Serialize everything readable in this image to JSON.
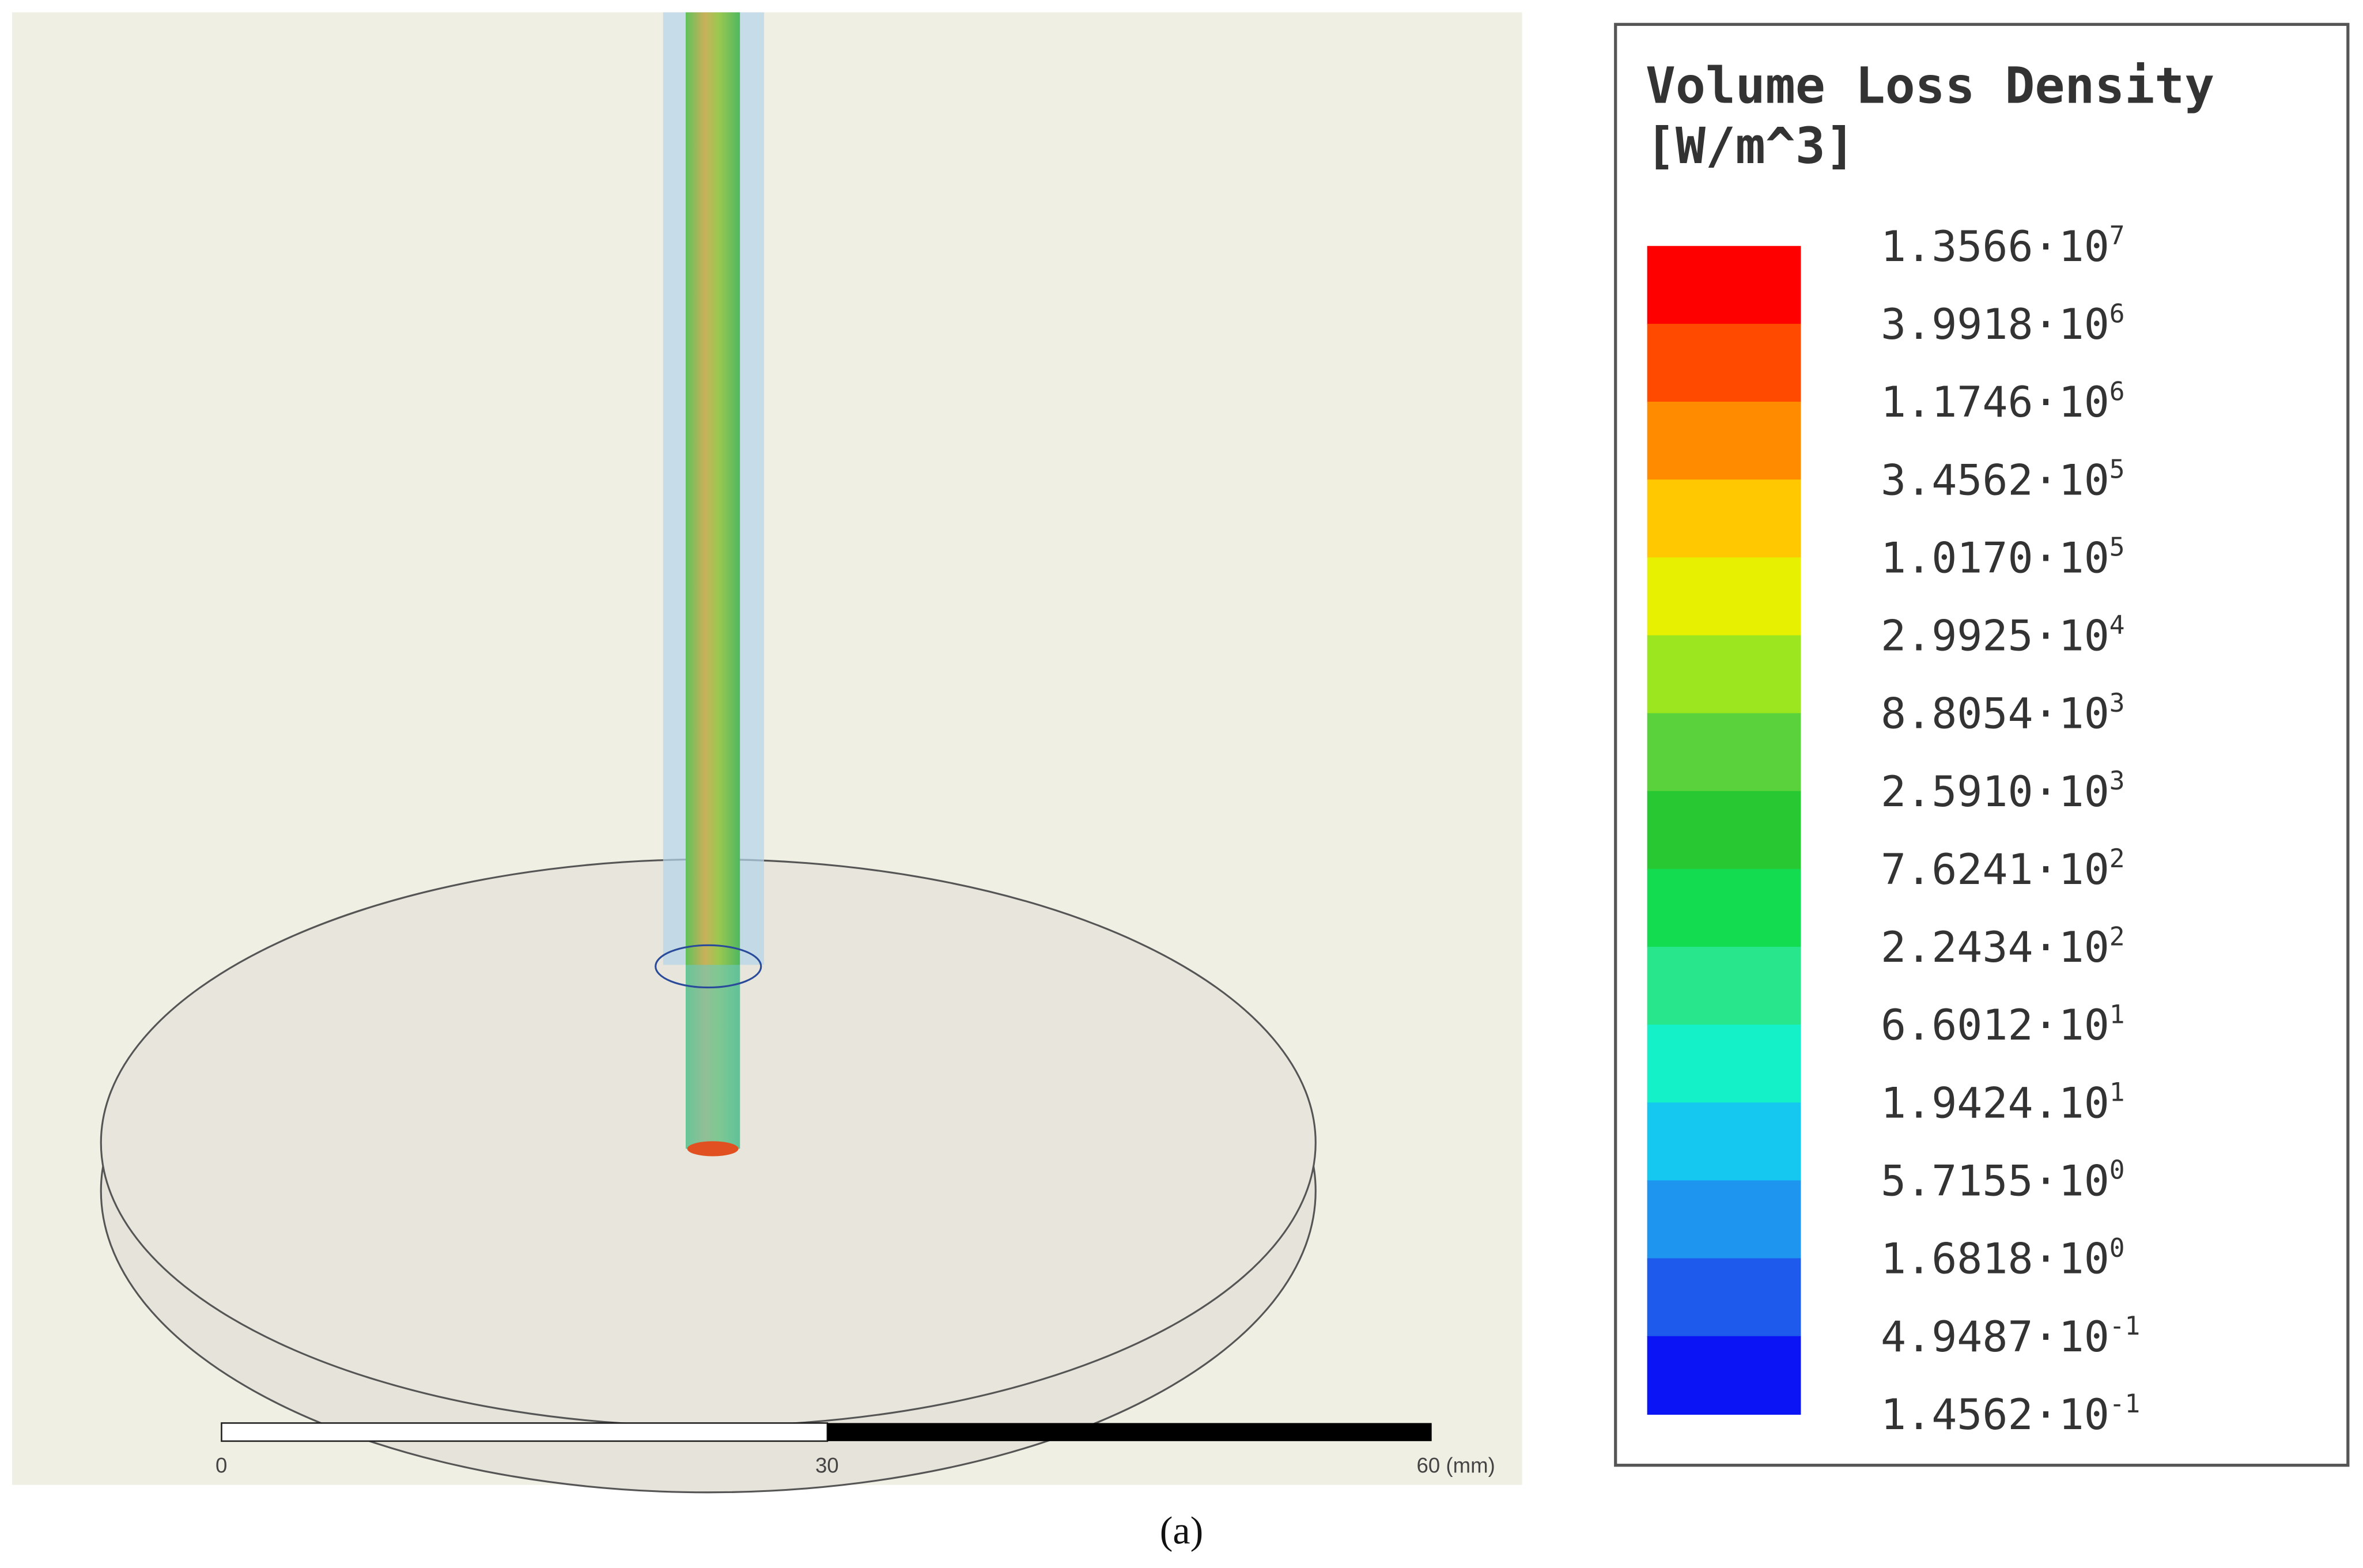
{
  "legend": {
    "title_lines": [
      "Volume Loss Density",
      "[W/m^3]"
    ],
    "colors": [
      "#ff0000",
      "#ff4a00",
      "#ff8c00",
      "#ffc800",
      "#e6f000",
      "#9be61e",
      "#5ad23c",
      "#28c832",
      "#14dc50",
      "#28e68c",
      "#14f0c8",
      "#14c8f0",
      "#1e96f0",
      "#1e5aeb",
      "#0a14f5"
    ],
    "entries": [
      {
        "base": "1.3566·10",
        "exponent": "7"
      },
      {
        "base": "3.9918·10",
        "exponent": "6"
      },
      {
        "base": "1.1746·10",
        "exponent": "6"
      },
      {
        "base": "3.4562·10",
        "exponent": "5"
      },
      {
        "base": "1.0170·10",
        "exponent": "5"
      },
      {
        "base": "2.9925·10",
        "exponent": "4"
      },
      {
        "base": "8.8054·10",
        "exponent": "3"
      },
      {
        "base": "2.5910·10",
        "exponent": "3"
      },
      {
        "base": "7.6241·10",
        "exponent": "2"
      },
      {
        "base": "2.2434·10",
        "exponent": "2"
      },
      {
        "base": "6.6012·10",
        "exponent": "1"
      },
      {
        "base": "1.9424.10",
        "exponent": "1"
      },
      {
        "base": "5.7155·10",
        "exponent": "0"
      },
      {
        "base": "1.6818·10",
        "exponent": "0"
      },
      {
        "base": "4.9487·10",
        "exponent": "-1"
      },
      {
        "base": "1.4562·10",
        "exponent": "-1"
      }
    ]
  },
  "scale_bar": {
    "labels": [
      "0",
      "30",
      "60 (mm)"
    ]
  },
  "caption": "(a)"
}
